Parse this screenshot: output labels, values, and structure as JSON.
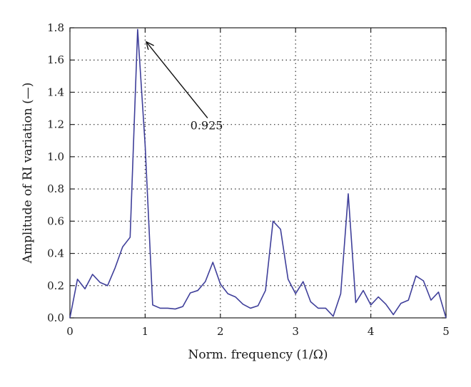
{
  "chart_data": {
    "type": "line",
    "xlabel": "Norm. frequency (1/Ω)",
    "ylabel": "Amplitude of RI variation (—)",
    "xlim": [
      0,
      5
    ],
    "ylim": [
      0,
      1.8
    ],
    "xticks": [
      0,
      1,
      2,
      3,
      4,
      5
    ],
    "xtick_labels": [
      "0",
      "1",
      "2",
      "3",
      "4",
      "5"
    ],
    "yticks": [
      0,
      0.2,
      0.4,
      0.6,
      0.8,
      1.0,
      1.2,
      1.4,
      1.6,
      1.8
    ],
    "ytick_labels": [
      "0.0",
      "0.2",
      "0.4",
      "0.6",
      "0.8",
      "1.0",
      "1.2",
      "1.4",
      "1.6",
      "1.8"
    ],
    "grid": true,
    "series": [
      {
        "color": "#3f3f9a",
        "x": [
          0,
          0.1,
          0.2,
          0.3,
          0.4,
          0.5,
          0.6,
          0.7,
          0.8,
          0.9,
          1.0,
          1.1,
          1.2,
          1.3,
          1.4,
          1.5,
          1.6,
          1.7,
          1.8,
          1.9,
          2.0,
          2.1,
          2.2,
          2.3,
          2.4,
          2.5,
          2.6,
          2.7,
          2.8,
          2.9,
          3.0,
          3.1,
          3.2,
          3.3,
          3.4,
          3.5,
          3.6,
          3.7,
          3.8,
          3.9,
          4.0,
          4.1,
          4.2,
          4.3,
          4.4,
          4.5,
          4.6,
          4.7,
          4.8,
          4.9,
          5.0
        ],
        "values": [
          0.0,
          0.24,
          0.18,
          0.27,
          0.22,
          0.2,
          0.31,
          0.44,
          0.5,
          1.79,
          1.07,
          0.08,
          0.06,
          0.06,
          0.055,
          0.07,
          0.155,
          0.17,
          0.225,
          0.345,
          0.21,
          0.15,
          0.13,
          0.085,
          0.06,
          0.075,
          0.17,
          0.6,
          0.55,
          0.24,
          0.15,
          0.225,
          0.1,
          0.06,
          0.06,
          0.01,
          0.15,
          0.77,
          0.095,
          0.17,
          0.08,
          0.13,
          0.085,
          0.02,
          0.09,
          0.11,
          0.26,
          0.23,
          0.11,
          0.16,
          0.0
        ]
      }
    ],
    "annotation": {
      "text": "0.925",
      "arrow_tip": [
        1.02,
        1.71
      ],
      "arrow_tail": [
        1.83,
        1.24
      ],
      "text_anchor": [
        1.6,
        1.17
      ]
    }
  }
}
